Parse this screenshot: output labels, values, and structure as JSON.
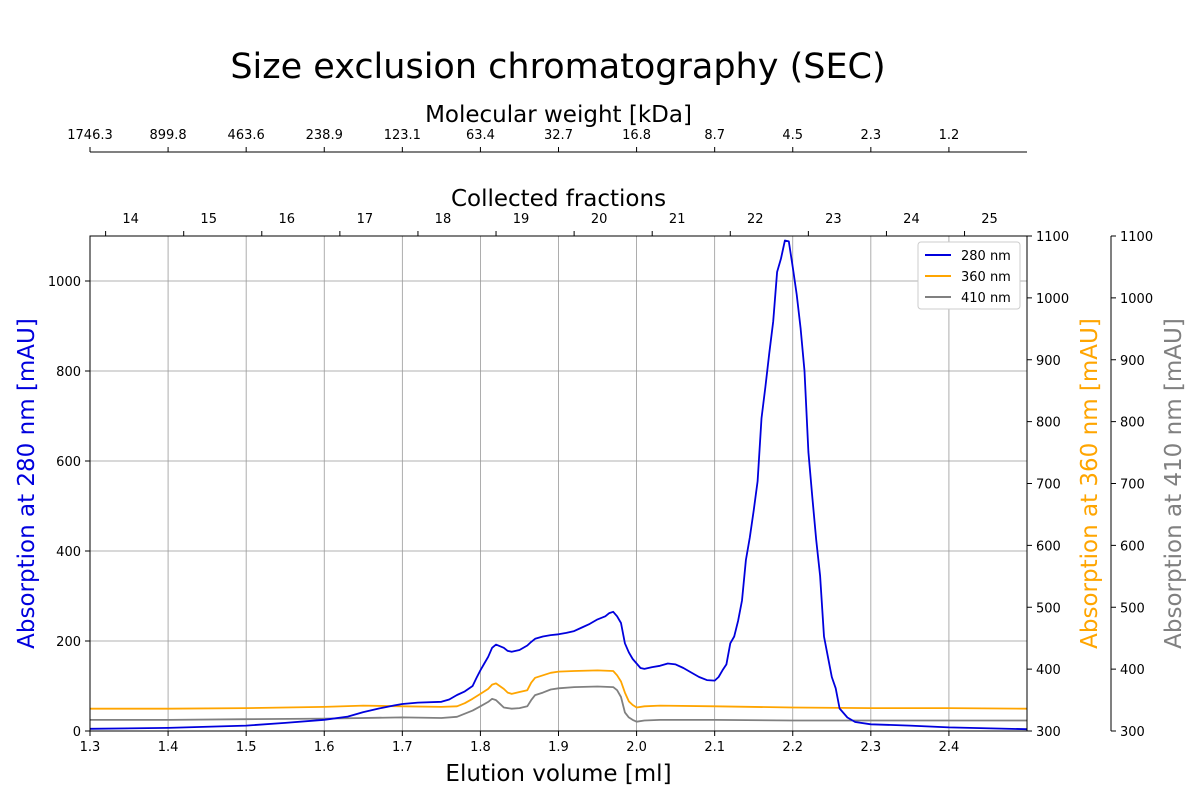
{
  "chart_data": {
    "type": "line",
    "title": "Size exclusion chromatography (SEC)",
    "xlabel": "Elution volume [ml]",
    "xlim": [
      1.3,
      2.5
    ],
    "x_ticks": [
      "1.3",
      "1.4",
      "1.5",
      "1.6",
      "1.7",
      "1.8",
      "1.9",
      "2.0",
      "2.1",
      "2.2",
      "2.3",
      "2.4"
    ],
    "grid": true,
    "legend_position": "top-right",
    "y_axes": [
      {
        "label": "Absorption at 280 nm [mAU]",
        "color": "#0000dd",
        "ylim": [
          0,
          1100
        ],
        "ticks": [
          "0",
          "200",
          "400",
          "600",
          "800",
          "1000"
        ]
      },
      {
        "label": "Absorption at 360 nm [mAU]",
        "color": "#ffa500",
        "ylim": [
          300,
          1100
        ],
        "ticks": [
          "300",
          "400",
          "500",
          "600",
          "700",
          "800",
          "900",
          "1000",
          "1100"
        ]
      },
      {
        "label": "Absorption at 410 nm [mAU]",
        "color": "#808080",
        "ylim": [
          300,
          1100
        ],
        "ticks": [
          "300",
          "400",
          "500",
          "600",
          "700",
          "800",
          "900",
          "1000",
          "1100"
        ]
      }
    ],
    "top_axes": [
      {
        "label": "Molecular weight [kDa]",
        "tick_x": [
          1.3,
          1.4,
          1.5,
          1.6,
          1.7,
          1.8,
          1.9,
          2.0,
          2.1,
          2.2,
          2.3,
          2.4
        ],
        "tick_labels": [
          "1746.3",
          "899.8",
          "463.6",
          "238.9",
          "123.1",
          "63.4",
          "32.7",
          "16.8",
          "8.7",
          "4.5",
          "2.3",
          "1.2"
        ]
      },
      {
        "label": "Collected fractions",
        "tick_x": [
          1.32,
          1.42,
          1.52,
          1.62,
          1.72,
          1.82,
          1.92,
          2.02,
          2.12,
          2.22,
          2.32,
          2.42
        ],
        "tick_labels": [
          "14",
          "15",
          "16",
          "17",
          "18",
          "19",
          "20",
          "21",
          "22",
          "23",
          "24",
          "25"
        ]
      }
    ],
    "series": [
      {
        "name": "280 nm",
        "color": "#0000dd",
        "axis": 0,
        "points": [
          [
            1.3,
            5
          ],
          [
            1.4,
            7
          ],
          [
            1.5,
            12
          ],
          [
            1.55,
            18
          ],
          [
            1.6,
            25
          ],
          [
            1.63,
            32
          ],
          [
            1.65,
            42
          ],
          [
            1.67,
            50
          ],
          [
            1.69,
            57
          ],
          [
            1.7,
            60
          ],
          [
            1.72,
            63
          ],
          [
            1.75,
            65
          ],
          [
            1.76,
            70
          ],
          [
            1.77,
            80
          ],
          [
            1.78,
            88
          ],
          [
            1.79,
            100
          ],
          [
            1.795,
            118
          ],
          [
            1.8,
            135
          ],
          [
            1.805,
            150
          ],
          [
            1.81,
            165
          ],
          [
            1.815,
            185
          ],
          [
            1.82,
            192
          ],
          [
            1.83,
            185
          ],
          [
            1.835,
            178
          ],
          [
            1.84,
            176
          ],
          [
            1.85,
            180
          ],
          [
            1.86,
            190
          ],
          [
            1.865,
            198
          ],
          [
            1.87,
            205
          ],
          [
            1.88,
            210
          ],
          [
            1.89,
            213
          ],
          [
            1.9,
            215
          ],
          [
            1.91,
            218
          ],
          [
            1.92,
            222
          ],
          [
            1.93,
            230
          ],
          [
            1.94,
            238
          ],
          [
            1.95,
            248
          ],
          [
            1.96,
            255
          ],
          [
            1.965,
            262
          ],
          [
            1.97,
            265
          ],
          [
            1.975,
            255
          ],
          [
            1.98,
            240
          ],
          [
            1.985,
            195
          ],
          [
            1.99,
            175
          ],
          [
            1.995,
            160
          ],
          [
            2.0,
            150
          ],
          [
            2.005,
            140
          ],
          [
            2.01,
            138
          ],
          [
            2.02,
            142
          ],
          [
            2.03,
            145
          ],
          [
            2.04,
            150
          ],
          [
            2.05,
            148
          ],
          [
            2.06,
            140
          ],
          [
            2.07,
            130
          ],
          [
            2.08,
            120
          ],
          [
            2.09,
            113
          ],
          [
            2.1,
            112
          ],
          [
            2.105,
            120
          ],
          [
            2.11,
            135
          ],
          [
            2.115,
            148
          ],
          [
            2.12,
            195
          ],
          [
            2.125,
            210
          ],
          [
            2.13,
            245
          ],
          [
            2.135,
            290
          ],
          [
            2.14,
            380
          ],
          [
            2.145,
            430
          ],
          [
            2.15,
            490
          ],
          [
            2.155,
            555
          ],
          [
            2.16,
            695
          ],
          [
            2.165,
            765
          ],
          [
            2.17,
            840
          ],
          [
            2.175,
            910
          ],
          [
            2.18,
            1020
          ],
          [
            2.185,
            1050
          ],
          [
            2.19,
            1090
          ],
          [
            2.195,
            1088
          ],
          [
            2.2,
            1030
          ],
          [
            2.205,
            970
          ],
          [
            2.21,
            895
          ],
          [
            2.215,
            800
          ],
          [
            2.22,
            620
          ],
          [
            2.225,
            520
          ],
          [
            2.23,
            425
          ],
          [
            2.235,
            345
          ],
          [
            2.24,
            210
          ],
          [
            2.245,
            165
          ],
          [
            2.25,
            120
          ],
          [
            2.255,
            95
          ],
          [
            2.26,
            50
          ],
          [
            2.265,
            40
          ],
          [
            2.27,
            30
          ],
          [
            2.28,
            20
          ],
          [
            2.3,
            15
          ],
          [
            2.35,
            12
          ],
          [
            2.4,
            8
          ],
          [
            2.5,
            4
          ]
        ]
      },
      {
        "name": "360 nm",
        "color": "#ffa500",
        "axis": 1,
        "points": [
          [
            1.3,
            336
          ],
          [
            1.4,
            336
          ],
          [
            1.5,
            337
          ],
          [
            1.6,
            339
          ],
          [
            1.65,
            341
          ],
          [
            1.7,
            340
          ],
          [
            1.75,
            339
          ],
          [
            1.77,
            340
          ],
          [
            1.78,
            345
          ],
          [
            1.79,
            352
          ],
          [
            1.8,
            360
          ],
          [
            1.81,
            368
          ],
          [
            1.815,
            375
          ],
          [
            1.82,
            377
          ],
          [
            1.83,
            368
          ],
          [
            1.835,
            362
          ],
          [
            1.84,
            360
          ],
          [
            1.85,
            363
          ],
          [
            1.86,
            366
          ],
          [
            1.865,
            378
          ],
          [
            1.87,
            386
          ],
          [
            1.88,
            390
          ],
          [
            1.89,
            394
          ],
          [
            1.9,
            396
          ],
          [
            1.92,
            397
          ],
          [
            1.95,
            398
          ],
          [
            1.97,
            397
          ],
          [
            1.975,
            390
          ],
          [
            1.98,
            380
          ],
          [
            1.985,
            362
          ],
          [
            1.99,
            348
          ],
          [
            1.995,
            342
          ],
          [
            2.0,
            338
          ],
          [
            2.01,
            340
          ],
          [
            2.03,
            341
          ],
          [
            2.1,
            340
          ],
          [
            2.2,
            338
          ],
          [
            2.3,
            337
          ],
          [
            2.4,
            337
          ],
          [
            2.5,
            336
          ]
        ]
      },
      {
        "name": "410 nm",
        "color": "#808080",
        "axis": 2,
        "points": [
          [
            1.3,
            318
          ],
          [
            1.4,
            318
          ],
          [
            1.5,
            319
          ],
          [
            1.6,
            320
          ],
          [
            1.7,
            322
          ],
          [
            1.75,
            321
          ],
          [
            1.77,
            323
          ],
          [
            1.78,
            328
          ],
          [
            1.79,
            333
          ],
          [
            1.8,
            340
          ],
          [
            1.81,
            347
          ],
          [
            1.815,
            352
          ],
          [
            1.82,
            350
          ],
          [
            1.825,
            344
          ],
          [
            1.83,
            338
          ],
          [
            1.84,
            336
          ],
          [
            1.85,
            337
          ],
          [
            1.86,
            340
          ],
          [
            1.865,
            350
          ],
          [
            1.87,
            358
          ],
          [
            1.88,
            362
          ],
          [
            1.89,
            367
          ],
          [
            1.9,
            369
          ],
          [
            1.92,
            371
          ],
          [
            1.95,
            372
          ],
          [
            1.97,
            371
          ],
          [
            1.975,
            366
          ],
          [
            1.98,
            355
          ],
          [
            1.985,
            330
          ],
          [
            1.99,
            322
          ],
          [
            1.995,
            318
          ],
          [
            2.0,
            315
          ],
          [
            2.01,
            317
          ],
          [
            2.03,
            318
          ],
          [
            2.1,
            318
          ],
          [
            2.2,
            317
          ],
          [
            2.3,
            317
          ],
          [
            2.4,
            317
          ],
          [
            2.5,
            317
          ]
        ]
      }
    ]
  }
}
